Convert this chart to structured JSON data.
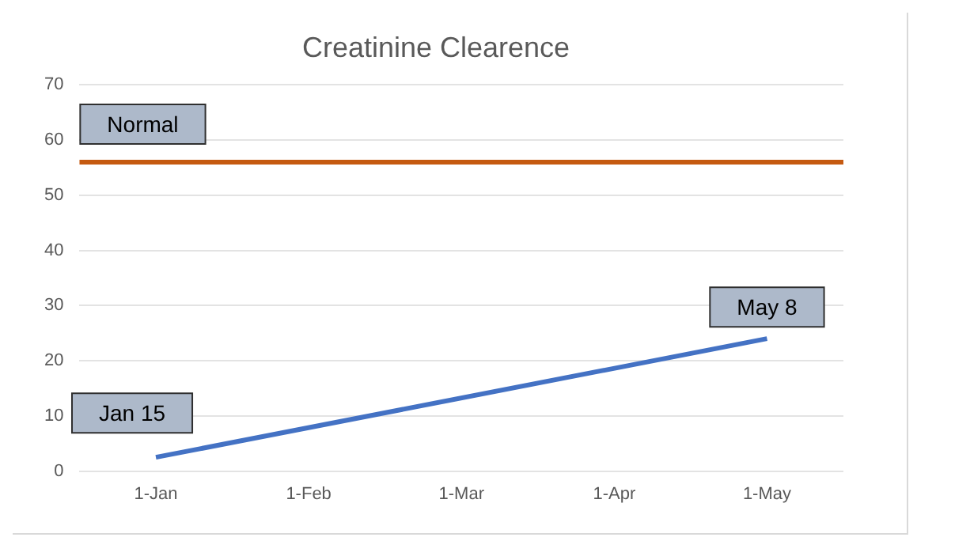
{
  "chart_data": {
    "type": "line",
    "title": "Creatinine Clearence",
    "categories": [
      "1-Jan",
      "1-Feb",
      "1-Mar",
      "1-Apr",
      "1-May"
    ],
    "series": [
      {
        "color": "#4472c4",
        "values": [
          2.5,
          null,
          null,
          null,
          24
        ]
      }
    ],
    "ref_lines": [
      {
        "axis": "y",
        "value": 56,
        "label": "Normal",
        "color": "#c55a11"
      }
    ],
    "annotations": [
      {
        "text": "Jan 15",
        "x": "1-Jan",
        "y": 2.5
      },
      {
        "text": "May 8",
        "x": "1-May",
        "y": 24
      }
    ],
    "ylim": [
      0,
      70
    ],
    "yticks": [
      0,
      10,
      20,
      30,
      40,
      50,
      60,
      70
    ],
    "grid": "y",
    "legend": false,
    "marker": "none",
    "line_style": "solid"
  }
}
